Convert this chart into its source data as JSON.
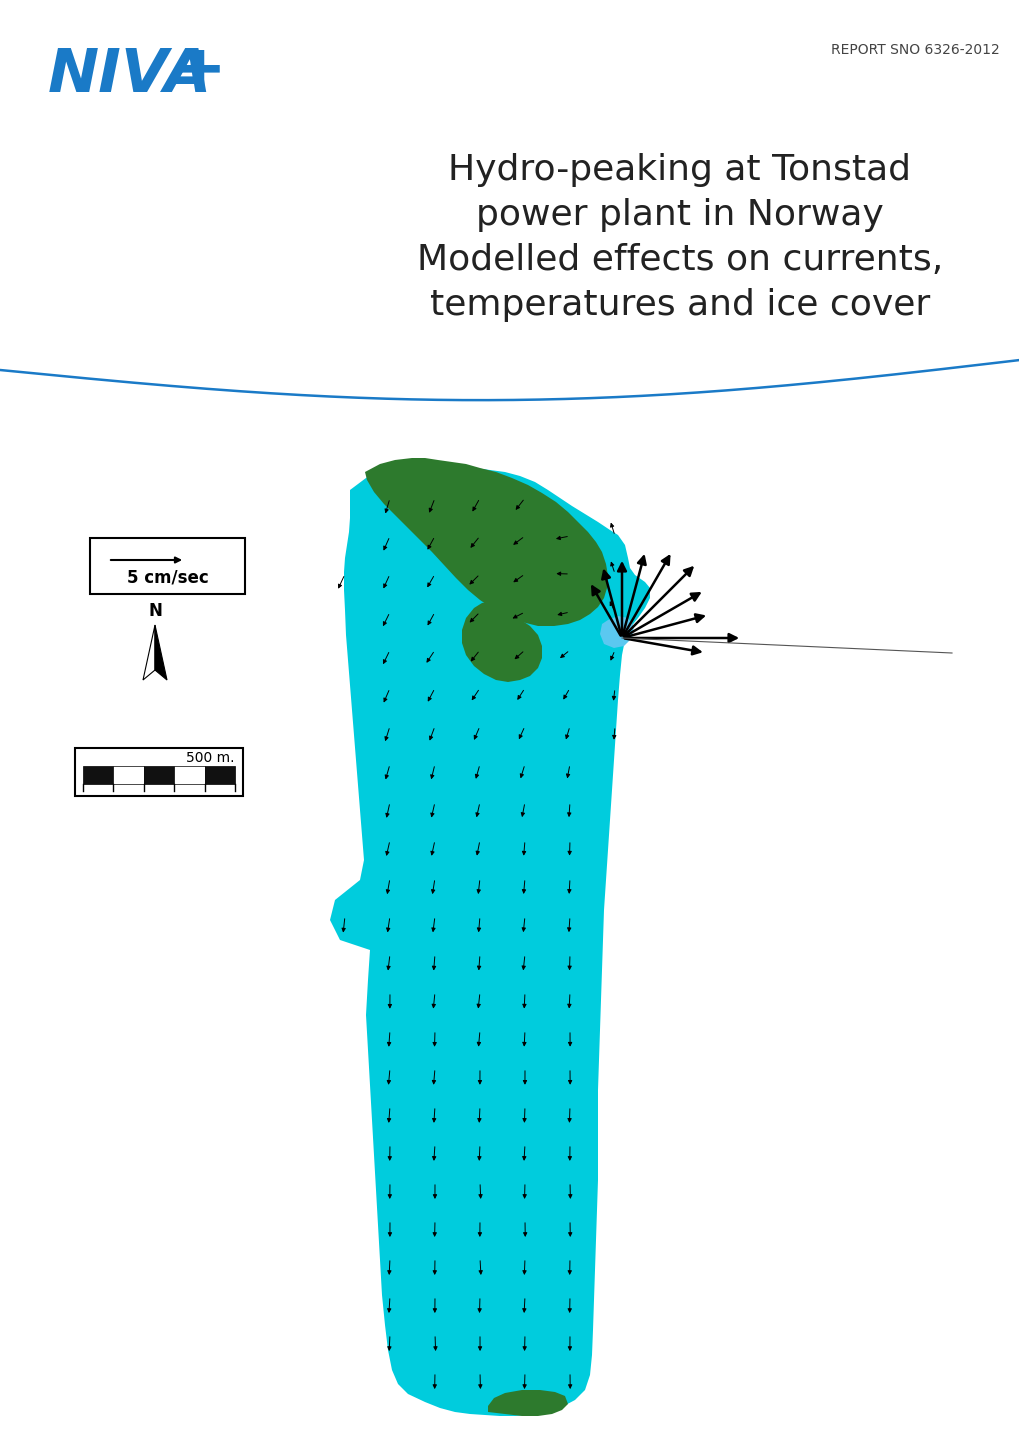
{
  "background_color": "#ffffff",
  "report_number": "REPORT SNO 6326-2012",
  "report_number_color": "#444444",
  "report_number_fontsize": 10,
  "niva_color": "#1a7ac7",
  "title_line1": "Hydro-peaking at Tonstad",
  "title_line2": "power plant in Norway",
  "title_line3": "Modelled effects on currents,",
  "title_line4": "temperatures and ice cover",
  "title_color": "#222222",
  "title_fontsize": 26,
  "wave_color": "#1a7ac7",
  "map_cyan": "#00ccdd",
  "map_dark_green": "#2d7a2d",
  "map_light_blue": "#5bc8e8",
  "legend_scale_label": "5 cm/sec",
  "scale_bar_label": "500 m."
}
